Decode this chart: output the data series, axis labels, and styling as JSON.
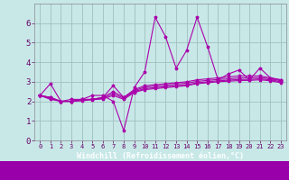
{
  "background_color": "#c8e8e8",
  "grid_color": "#a0c0c0",
  "line_color": "#aa00aa",
  "marker": "*",
  "xlabel": "Windchill (Refroidissement éolien,°C)",
  "xlabel_color": "#aa00aa",
  "ylim": [
    0,
    7
  ],
  "xlim": [
    -0.5,
    23.5
  ],
  "yticks": [
    0,
    1,
    2,
    3,
    4,
    5,
    6
  ],
  "xticks": [
    0,
    1,
    2,
    3,
    4,
    5,
    6,
    7,
    8,
    9,
    10,
    11,
    12,
    13,
    14,
    15,
    16,
    17,
    18,
    19,
    20,
    21,
    22,
    23
  ],
  "lines": [
    [
      2.3,
      2.9,
      2.0,
      2.1,
      2.1,
      2.3,
      2.3,
      2.0,
      0.5,
      2.7,
      3.5,
      6.3,
      5.3,
      3.7,
      4.6,
      6.3,
      4.8,
      3.1,
      3.4,
      3.6,
      3.1,
      3.7,
      3.2,
      3.1
    ],
    [
      2.3,
      2.2,
      2.0,
      2.0,
      2.1,
      2.1,
      2.2,
      2.8,
      2.2,
      2.6,
      2.8,
      2.85,
      2.9,
      2.95,
      3.0,
      3.1,
      3.15,
      3.2,
      3.25,
      3.3,
      3.3,
      3.3,
      3.2,
      3.1
    ],
    [
      2.3,
      2.2,
      2.0,
      2.0,
      2.1,
      2.1,
      2.2,
      2.5,
      2.2,
      2.55,
      2.72,
      2.78,
      2.82,
      2.88,
      2.93,
      3.02,
      3.07,
      3.12,
      3.15,
      3.2,
      3.2,
      3.22,
      3.15,
      3.05
    ],
    [
      2.3,
      2.15,
      2.0,
      2.0,
      2.05,
      2.1,
      2.15,
      2.4,
      2.15,
      2.5,
      2.65,
      2.7,
      2.75,
      2.8,
      2.85,
      2.95,
      3.0,
      3.05,
      3.08,
      3.12,
      3.12,
      3.15,
      3.1,
      3.0
    ],
    [
      2.3,
      2.1,
      2.0,
      2.0,
      2.03,
      2.08,
      2.12,
      2.3,
      2.1,
      2.45,
      2.6,
      2.65,
      2.7,
      2.75,
      2.8,
      2.9,
      2.95,
      3.0,
      3.03,
      3.06,
      3.07,
      3.1,
      3.05,
      2.95
    ]
  ]
}
